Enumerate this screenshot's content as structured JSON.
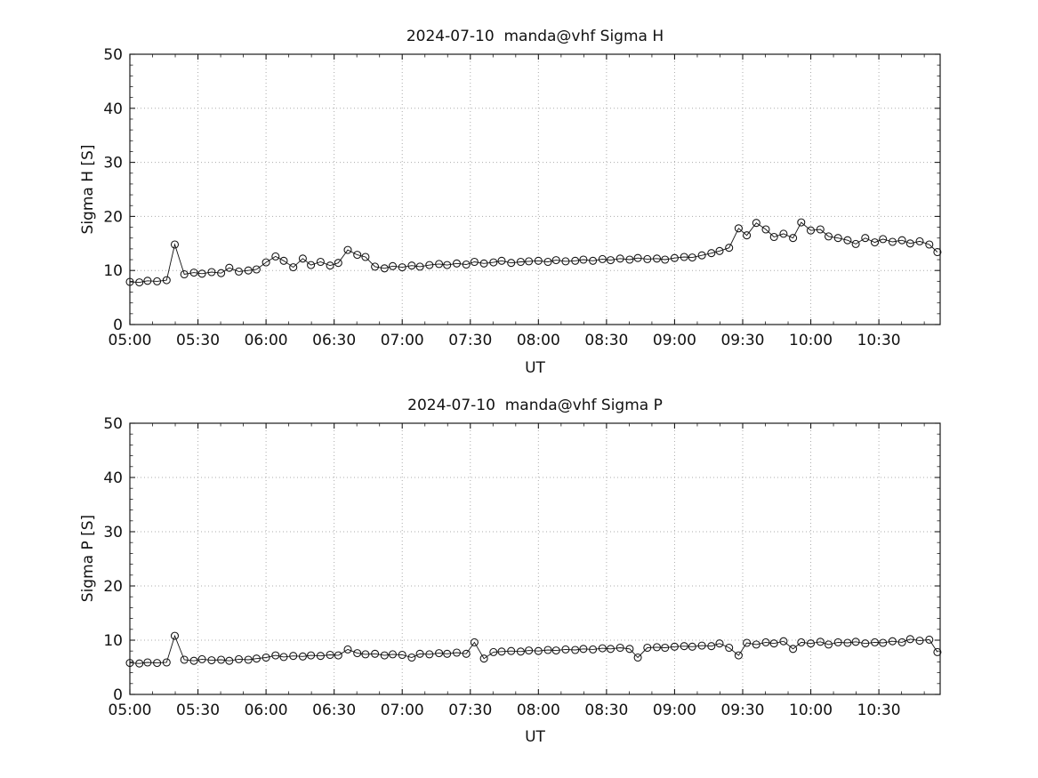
{
  "figure": {
    "background": "#ffffff",
    "line_color": "#000000",
    "grid_color": "#ababab"
  },
  "chart_data": [
    {
      "type": "line",
      "title": "2024-07-10  manda@vhf Sigma H",
      "xlabel": "UT",
      "ylabel": "Sigma H [S]",
      "marker": "open-circle",
      "grid": true,
      "xlim": [
        5.0,
        10.95
      ],
      "ylim": [
        0,
        50
      ],
      "yticks": [
        0,
        10,
        20,
        30,
        40,
        50
      ],
      "xticks": [
        {
          "v": 5.0,
          "label": "05:00"
        },
        {
          "v": 5.5,
          "label": "05:30"
        },
        {
          "v": 6.0,
          "label": "06:00"
        },
        {
          "v": 6.5,
          "label": "06:30"
        },
        {
          "v": 7.0,
          "label": "07:00"
        },
        {
          "v": 7.5,
          "label": "07:30"
        },
        {
          "v": 8.0,
          "label": "08:00"
        },
        {
          "v": 8.5,
          "label": "08:30"
        },
        {
          "v": 9.0,
          "label": "09:00"
        },
        {
          "v": 9.5,
          "label": "09:30"
        },
        {
          "v": 10.0,
          "label": "10:00"
        },
        {
          "v": 10.5,
          "label": "10:30"
        }
      ],
      "x": [
        5.0,
        5.07,
        5.13,
        5.2,
        5.27,
        5.33,
        5.4,
        5.47,
        5.53,
        5.6,
        5.67,
        5.73,
        5.8,
        5.87,
        5.93,
        6.0,
        6.07,
        6.13,
        6.2,
        6.27,
        6.33,
        6.4,
        6.47,
        6.53,
        6.6,
        6.67,
        6.73,
        6.8,
        6.87,
        6.93,
        7.0,
        7.07,
        7.13,
        7.2,
        7.27,
        7.33,
        7.4,
        7.47,
        7.53,
        7.6,
        7.67,
        7.73,
        7.8,
        7.87,
        7.93,
        8.0,
        8.07,
        8.13,
        8.2,
        8.27,
        8.33,
        8.4,
        8.47,
        8.53,
        8.6,
        8.67,
        8.73,
        8.8,
        8.87,
        8.93,
        9.0,
        9.07,
        9.13,
        9.2,
        9.27,
        9.33,
        9.4,
        9.47,
        9.53,
        9.6,
        9.67,
        9.73,
        9.8,
        9.87,
        9.93,
        10.0,
        10.07,
        10.13,
        10.2,
        10.27,
        10.33,
        10.4,
        10.47,
        10.53,
        10.6,
        10.67,
        10.73,
        10.8,
        10.87,
        10.93
      ],
      "y": [
        7.9,
        7.8,
        8.1,
        8.0,
        8.2,
        14.8,
        9.3,
        9.6,
        9.4,
        9.7,
        9.5,
        10.5,
        9.8,
        10.0,
        10.2,
        11.5,
        12.6,
        11.8,
        10.6,
        12.2,
        11.0,
        11.6,
        10.9,
        11.4,
        13.8,
        12.9,
        12.5,
        10.7,
        10.4,
        10.8,
        10.6,
        10.9,
        10.7,
        11.0,
        11.2,
        11.0,
        11.3,
        11.1,
        11.6,
        11.3,
        11.5,
        11.8,
        11.4,
        11.6,
        11.7,
        11.8,
        11.6,
        11.9,
        11.7,
        11.8,
        12.0,
        11.8,
        12.1,
        11.9,
        12.2,
        12.0,
        12.3,
        12.1,
        12.2,
        12.0,
        12.3,
        12.5,
        12.4,
        12.8,
        13.2,
        13.6,
        14.2,
        17.8,
        16.5,
        18.8,
        17.6,
        16.2,
        16.8,
        16.0,
        18.9,
        17.4,
        17.6,
        16.3,
        16.0,
        15.6,
        14.9,
        16.0,
        15.2,
        15.8,
        15.3,
        15.6,
        15.0,
        15.4,
        14.8,
        13.4
      ]
    },
    {
      "type": "line",
      "title": "2024-07-10  manda@vhf Sigma P",
      "xlabel": "UT",
      "ylabel": "Sigma P [S]",
      "marker": "open-circle",
      "grid": true,
      "xlim": [
        5.0,
        10.95
      ],
      "ylim": [
        0,
        50
      ],
      "yticks": [
        0,
        10,
        20,
        30,
        40,
        50
      ],
      "xticks": [
        {
          "v": 5.0,
          "label": "05:00"
        },
        {
          "v": 5.5,
          "label": "05:30"
        },
        {
          "v": 6.0,
          "label": "06:00"
        },
        {
          "v": 6.5,
          "label": "06:30"
        },
        {
          "v": 7.0,
          "label": "07:00"
        },
        {
          "v": 7.5,
          "label": "07:30"
        },
        {
          "v": 8.0,
          "label": "08:00"
        },
        {
          "v": 8.5,
          "label": "08:30"
        },
        {
          "v": 9.0,
          "label": "09:00"
        },
        {
          "v": 9.5,
          "label": "09:30"
        },
        {
          "v": 10.0,
          "label": "10:00"
        },
        {
          "v": 10.5,
          "label": "10:30"
        }
      ],
      "x": [
        5.0,
        5.07,
        5.13,
        5.2,
        5.27,
        5.33,
        5.4,
        5.47,
        5.53,
        5.6,
        5.67,
        5.73,
        5.8,
        5.87,
        5.93,
        6.0,
        6.07,
        6.13,
        6.2,
        6.27,
        6.33,
        6.4,
        6.47,
        6.53,
        6.6,
        6.67,
        6.73,
        6.8,
        6.87,
        6.93,
        7.0,
        7.07,
        7.13,
        7.2,
        7.27,
        7.33,
        7.4,
        7.47,
        7.53,
        7.6,
        7.67,
        7.73,
        7.8,
        7.87,
        7.93,
        8.0,
        8.07,
        8.13,
        8.2,
        8.27,
        8.33,
        8.4,
        8.47,
        8.53,
        8.6,
        8.67,
        8.73,
        8.8,
        8.87,
        8.93,
        9.0,
        9.07,
        9.13,
        9.2,
        9.27,
        9.33,
        9.4,
        9.47,
        9.53,
        9.6,
        9.67,
        9.73,
        9.8,
        9.87,
        9.93,
        10.0,
        10.07,
        10.13,
        10.2,
        10.27,
        10.33,
        10.4,
        10.47,
        10.53,
        10.6,
        10.67,
        10.73,
        10.8,
        10.87,
        10.93
      ],
      "y": [
        5.8,
        5.7,
        5.9,
        5.8,
        5.9,
        10.8,
        6.4,
        6.2,
        6.5,
        6.3,
        6.4,
        6.2,
        6.5,
        6.4,
        6.6,
        6.8,
        7.2,
        6.9,
        7.1,
        7.0,
        7.2,
        7.1,
        7.3,
        7.2,
        8.3,
        7.6,
        7.4,
        7.5,
        7.2,
        7.4,
        7.3,
        6.8,
        7.5,
        7.4,
        7.6,
        7.5,
        7.7,
        7.5,
        9.6,
        6.6,
        7.8,
        7.9,
        8.0,
        7.9,
        8.1,
        8.0,
        8.2,
        8.1,
        8.3,
        8.2,
        8.4,
        8.3,
        8.5,
        8.4,
        8.6,
        8.4,
        6.8,
        8.6,
        8.7,
        8.6,
        8.8,
        8.9,
        8.8,
        9.0,
        8.9,
        9.4,
        8.6,
        7.2,
        9.5,
        9.2,
        9.6,
        9.4,
        9.8,
        8.4,
        9.6,
        9.4,
        9.7,
        9.2,
        9.6,
        9.5,
        9.7,
        9.4,
        9.6,
        9.5,
        9.8,
        9.6,
        10.2,
        9.9,
        10.1,
        7.8
      ]
    }
  ]
}
